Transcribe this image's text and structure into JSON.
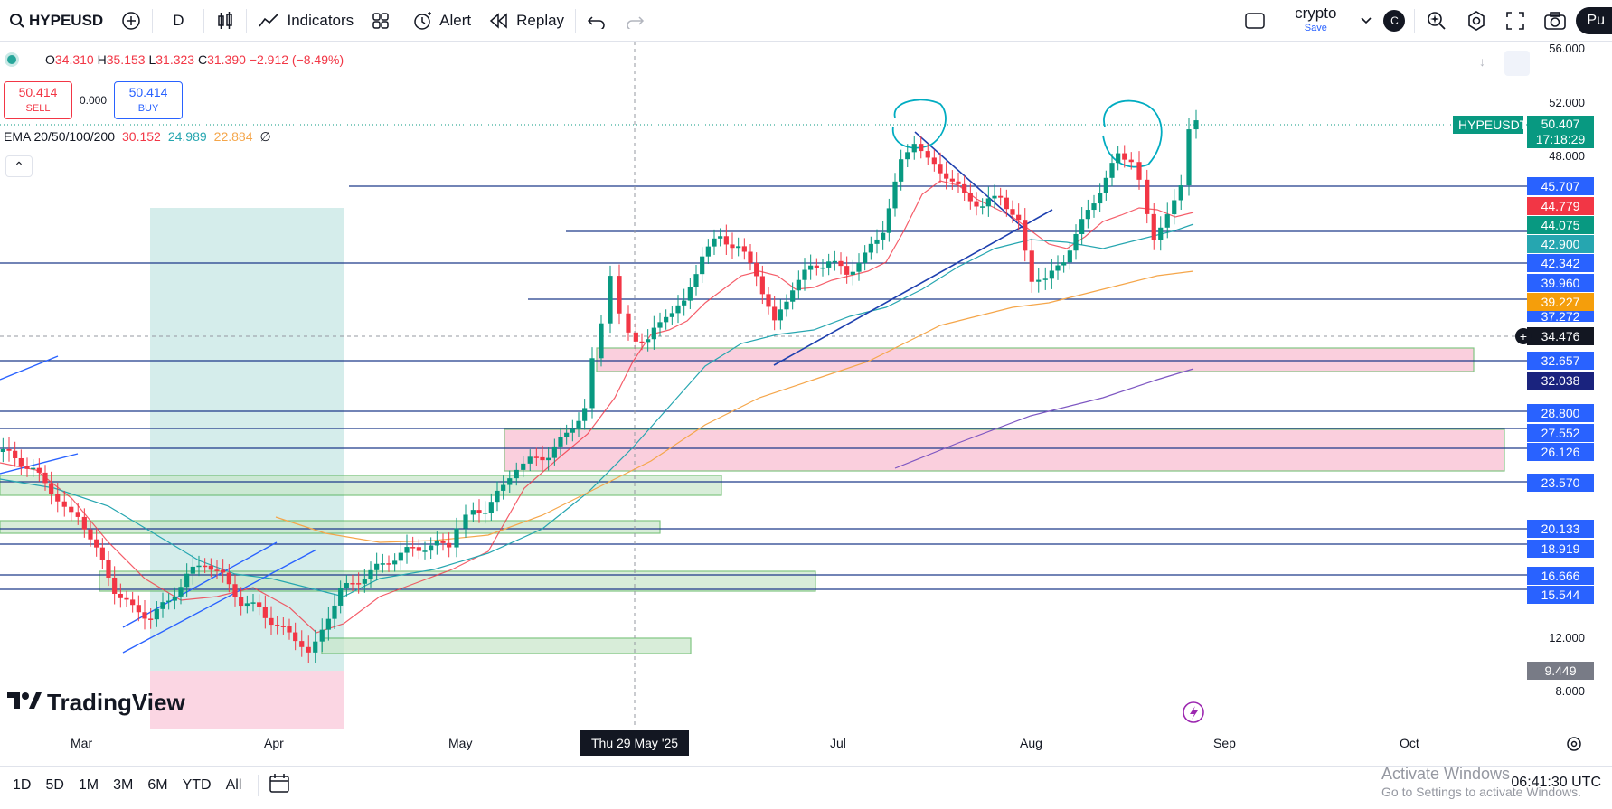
{
  "toolbar": {
    "symbol": "HYPEUSD",
    "interval": "D",
    "indicators": "Indicators",
    "alert": "Alert",
    "replay": "Replay",
    "layout_name": "crypto",
    "layout_sub": "Save",
    "avatar_letter": "C",
    "publish": "Pu"
  },
  "legend": {
    "o_key": "O",
    "o_val": "34.310",
    "h_key": "H",
    "h_val": "35.153",
    "l_key": "L",
    "l_val": "31.323",
    "c_key": "C",
    "c_val": "31.390",
    "change": "−2.912 (−8.49%)"
  },
  "trade": {
    "sell_price": "50.414",
    "sell_label": "SELL",
    "spread": "0.000",
    "buy_price": "50.414",
    "buy_label": "BUY"
  },
  "ema": {
    "label": "EMA 20/50/100/200",
    "v20": "30.152",
    "v50": "24.989",
    "v100": "22.884",
    "v200": "∅"
  },
  "price_axis": [
    "56.000",
    "52.000",
    "48.000",
    "12.000",
    "8.000"
  ],
  "price_tags": {
    "symbol": "HYPEUSDT",
    "last": "50.407",
    "countdown": "17:18:29",
    "l45707": "45.707",
    "l44779": "44.779",
    "l44075": "44.075",
    "l42900": "42.900",
    "l42342": "42.342",
    "l39960": "39.960",
    "l39227": "39.227",
    "l37272": "37.272",
    "cross": "34.476",
    "l32657": "32.657",
    "l32038": "32.038",
    "l28800": "28.800",
    "l27552": "27.552",
    "l26126": "26.126",
    "l23570": "23.570",
    "l20133": "20.133",
    "l18919": "18.919",
    "l16666": "16.666",
    "l15544": "15.544",
    "l9449": "9.449"
  },
  "time_axis": {
    "mar": "Mar",
    "apr": "Apr",
    "may": "May",
    "cursor": "Thu 29 May '25",
    "jul": "Jul",
    "aug": "Aug",
    "sep": "Sep",
    "oct": "Oct"
  },
  "ranges": [
    "1D",
    "5D",
    "1M",
    "3M",
    "6M",
    "YTD",
    "All"
  ],
  "brand": "TradingView",
  "watermark": {
    "title": "Activate Windows",
    "sub": "Go to Settings to activate Windows."
  },
  "clock": "06:41:30 UTC",
  "colors": {
    "up": "#089981",
    "down": "#f23645",
    "line": "#2962ff",
    "zone_red": "#f8bbd0",
    "zone_green": "#c8e6c9"
  }
}
